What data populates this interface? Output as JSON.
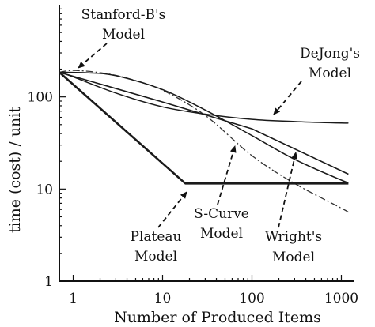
{
  "chart_data": {
    "type": "line",
    "title": "",
    "xlabel": "Number of Produced Items",
    "ylabel": "time (cost) / unit",
    "xscale": "log",
    "yscale": "log",
    "xlim": [
      0.7,
      1400
    ],
    "ylim": [
      1,
      1000
    ],
    "x_tick_labels": [
      "1",
      "10",
      "100",
      "1000"
    ],
    "x_tick_values": [
      1,
      10,
      100,
      1000
    ],
    "y_tick_labels": [
      "1",
      "10",
      "100"
    ],
    "y_tick_values": [
      1,
      10,
      100
    ],
    "grid": false,
    "series": [
      {
        "name": "Stanford-B's Model",
        "style": "dash-dot",
        "x": [
          0.7,
          1,
          2,
          4,
          10,
          30,
          100,
          300,
          1000,
          1200
        ],
        "y": [
          185,
          194,
          183,
          160,
          118,
          63,
          23,
          11.5,
          6.2,
          5.6
        ]
      },
      {
        "name": "DeJong's Model",
        "style": "solid",
        "x": [
          0.7,
          1,
          3,
          10,
          30,
          100,
          300,
          1000,
          1200
        ],
        "y": [
          185,
          165,
          110,
          78,
          65,
          57,
          54,
          52,
          52
        ]
      },
      {
        "name": "S-Curve Model",
        "style": "solid",
        "x": [
          0.7,
          1.5,
          3,
          10,
          30,
          100,
          300,
          1000,
          1200
        ],
        "y": [
          185,
          182,
          170,
          120,
          72,
          38,
          21,
          12.5,
          11.8
        ]
      },
      {
        "name": "Wright's Model",
        "style": "solid",
        "x": [
          0.7,
          10,
          100,
          1200
        ],
        "y": [
          185,
          88,
          45,
          14.5
        ]
      },
      {
        "name": "Plateau Model",
        "style": "solid-bold",
        "x": [
          0.7,
          18,
          1200
        ],
        "y": [
          185,
          11.5,
          11.5
        ]
      }
    ],
    "annotations": [
      {
        "line1": "Stanford-B's",
        "line2": "Model"
      },
      {
        "line1": "DeJong's",
        "line2": "Model"
      },
      {
        "line1": "S-Curve",
        "line2": "Model"
      },
      {
        "line1": "Plateau",
        "line2": "Model"
      },
      {
        "line1": "Wright's",
        "line2": "Model"
      }
    ]
  }
}
